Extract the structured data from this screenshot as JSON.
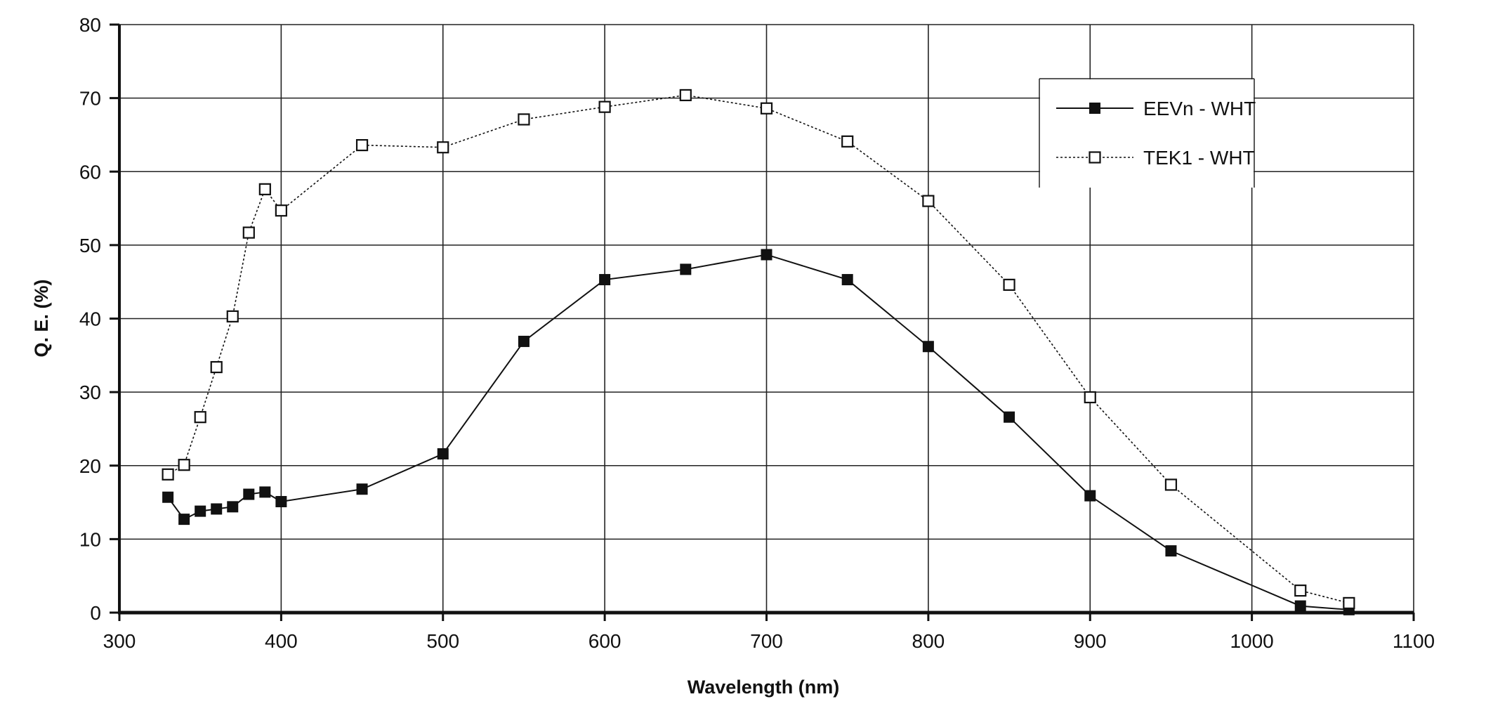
{
  "chart_data": {
    "type": "line",
    "title": "",
    "xlabel": "Wavelength (nm)",
    "ylabel": "Q. E. (%)",
    "xlim": [
      300,
      1100
    ],
    "ylim": [
      0,
      80
    ],
    "grid": true,
    "legend_position": "top-right",
    "x_ticks": [
      "300",
      "400",
      "500",
      "600",
      "700",
      "800",
      "900",
      "1000",
      "1100"
    ],
    "y_ticks": [
      "0",
      "10",
      "20",
      "30",
      "40",
      "50",
      "60",
      "70",
      "80"
    ],
    "series": [
      {
        "name": "EEVn - WHT",
        "marker": "filled-square",
        "line_style": "solid",
        "color": "#111111",
        "x": [
          330,
          340,
          350,
          360,
          370,
          380,
          390,
          400,
          450,
          500,
          550,
          600,
          650,
          700,
          750,
          800,
          850,
          900,
          950,
          1030,
          1060
        ],
        "values": [
          15.7,
          12.7,
          13.8,
          14.1,
          14.4,
          16.1,
          16.4,
          15.1,
          16.8,
          21.6,
          36.9,
          45.3,
          46.7,
          48.7,
          45.3,
          36.2,
          26.6,
          15.9,
          8.4,
          0.9,
          0.4
        ]
      },
      {
        "name": "TEK1 - WHT",
        "marker": "open-square",
        "line_style": "dotted",
        "color": "#111111",
        "x": [
          330,
          340,
          350,
          360,
          370,
          380,
          390,
          400,
          450,
          500,
          550,
          600,
          650,
          700,
          750,
          800,
          850,
          900,
          950,
          1030,
          1060
        ],
        "values": [
          18.8,
          20.1,
          26.6,
          33.4,
          40.3,
          51.7,
          57.6,
          54.7,
          63.6,
          63.3,
          67.1,
          68.8,
          70.4,
          68.6,
          64.1,
          56.0,
          44.6,
          29.3,
          17.4,
          3.0,
          1.3
        ]
      }
    ]
  }
}
